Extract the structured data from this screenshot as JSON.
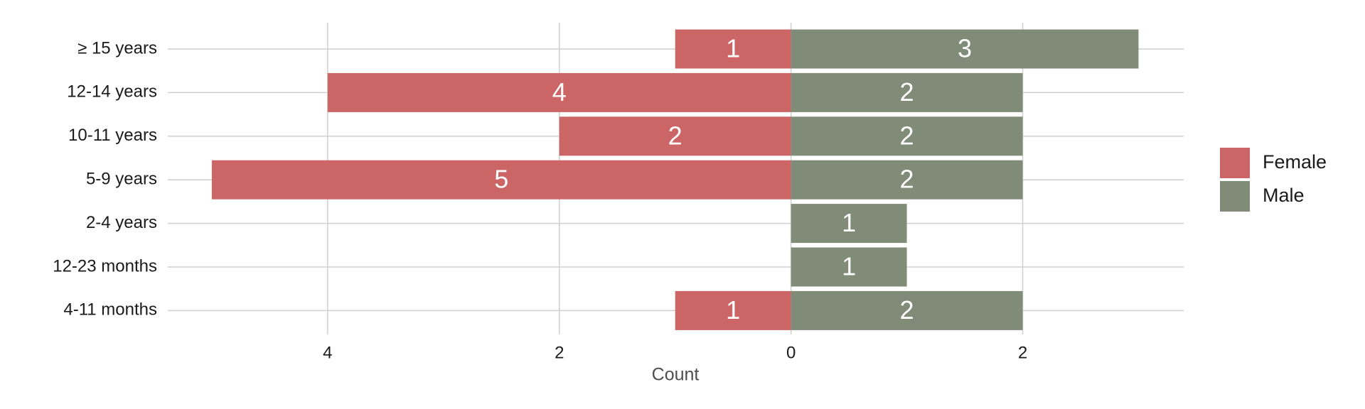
{
  "chart_data": {
    "type": "pyramid",
    "x_label": "Count",
    "categories": [
      "≥ 15 years",
      "12-14 years",
      "10-11 years",
      "5-9 years",
      "2-4 years",
      "12-23 months",
      "4-11 months"
    ],
    "series": [
      {
        "name": "Female",
        "color": "#cc6666",
        "values": [
          -1,
          -4,
          -2,
          -5,
          null,
          null,
          -1
        ],
        "value_labels": [
          "1",
          "4",
          "2",
          "5",
          null,
          null,
          "1"
        ]
      },
      {
        "name": "Male",
        "color": "#808c78",
        "values": [
          3,
          2,
          2,
          2,
          1,
          1,
          2
        ]
      }
    ],
    "xlim": [
      -5.38,
      3.39
    ],
    "xticks": [
      {
        "value": -4,
        "label": "4"
      },
      {
        "value": -2,
        "label": "2"
      },
      0,
      2
    ],
    "grid": true,
    "legend": "right"
  }
}
